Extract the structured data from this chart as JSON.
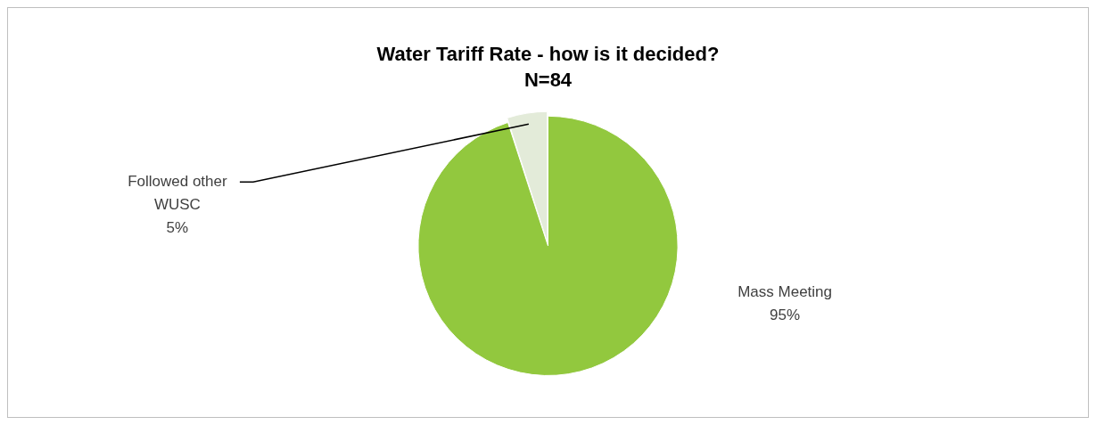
{
  "chart_data": {
    "type": "pie",
    "title": "Water Tariff Rate - how is it decided?",
    "subtitle": "N=84",
    "categories": [
      "Followed other WUSC",
      "Mass Meeting"
    ],
    "values": [
      5,
      95
    ],
    "colors": [
      "#e3ebd9",
      "#92c83e"
    ],
    "value_labels": [
      "5%",
      "95%"
    ],
    "legend": false
  }
}
